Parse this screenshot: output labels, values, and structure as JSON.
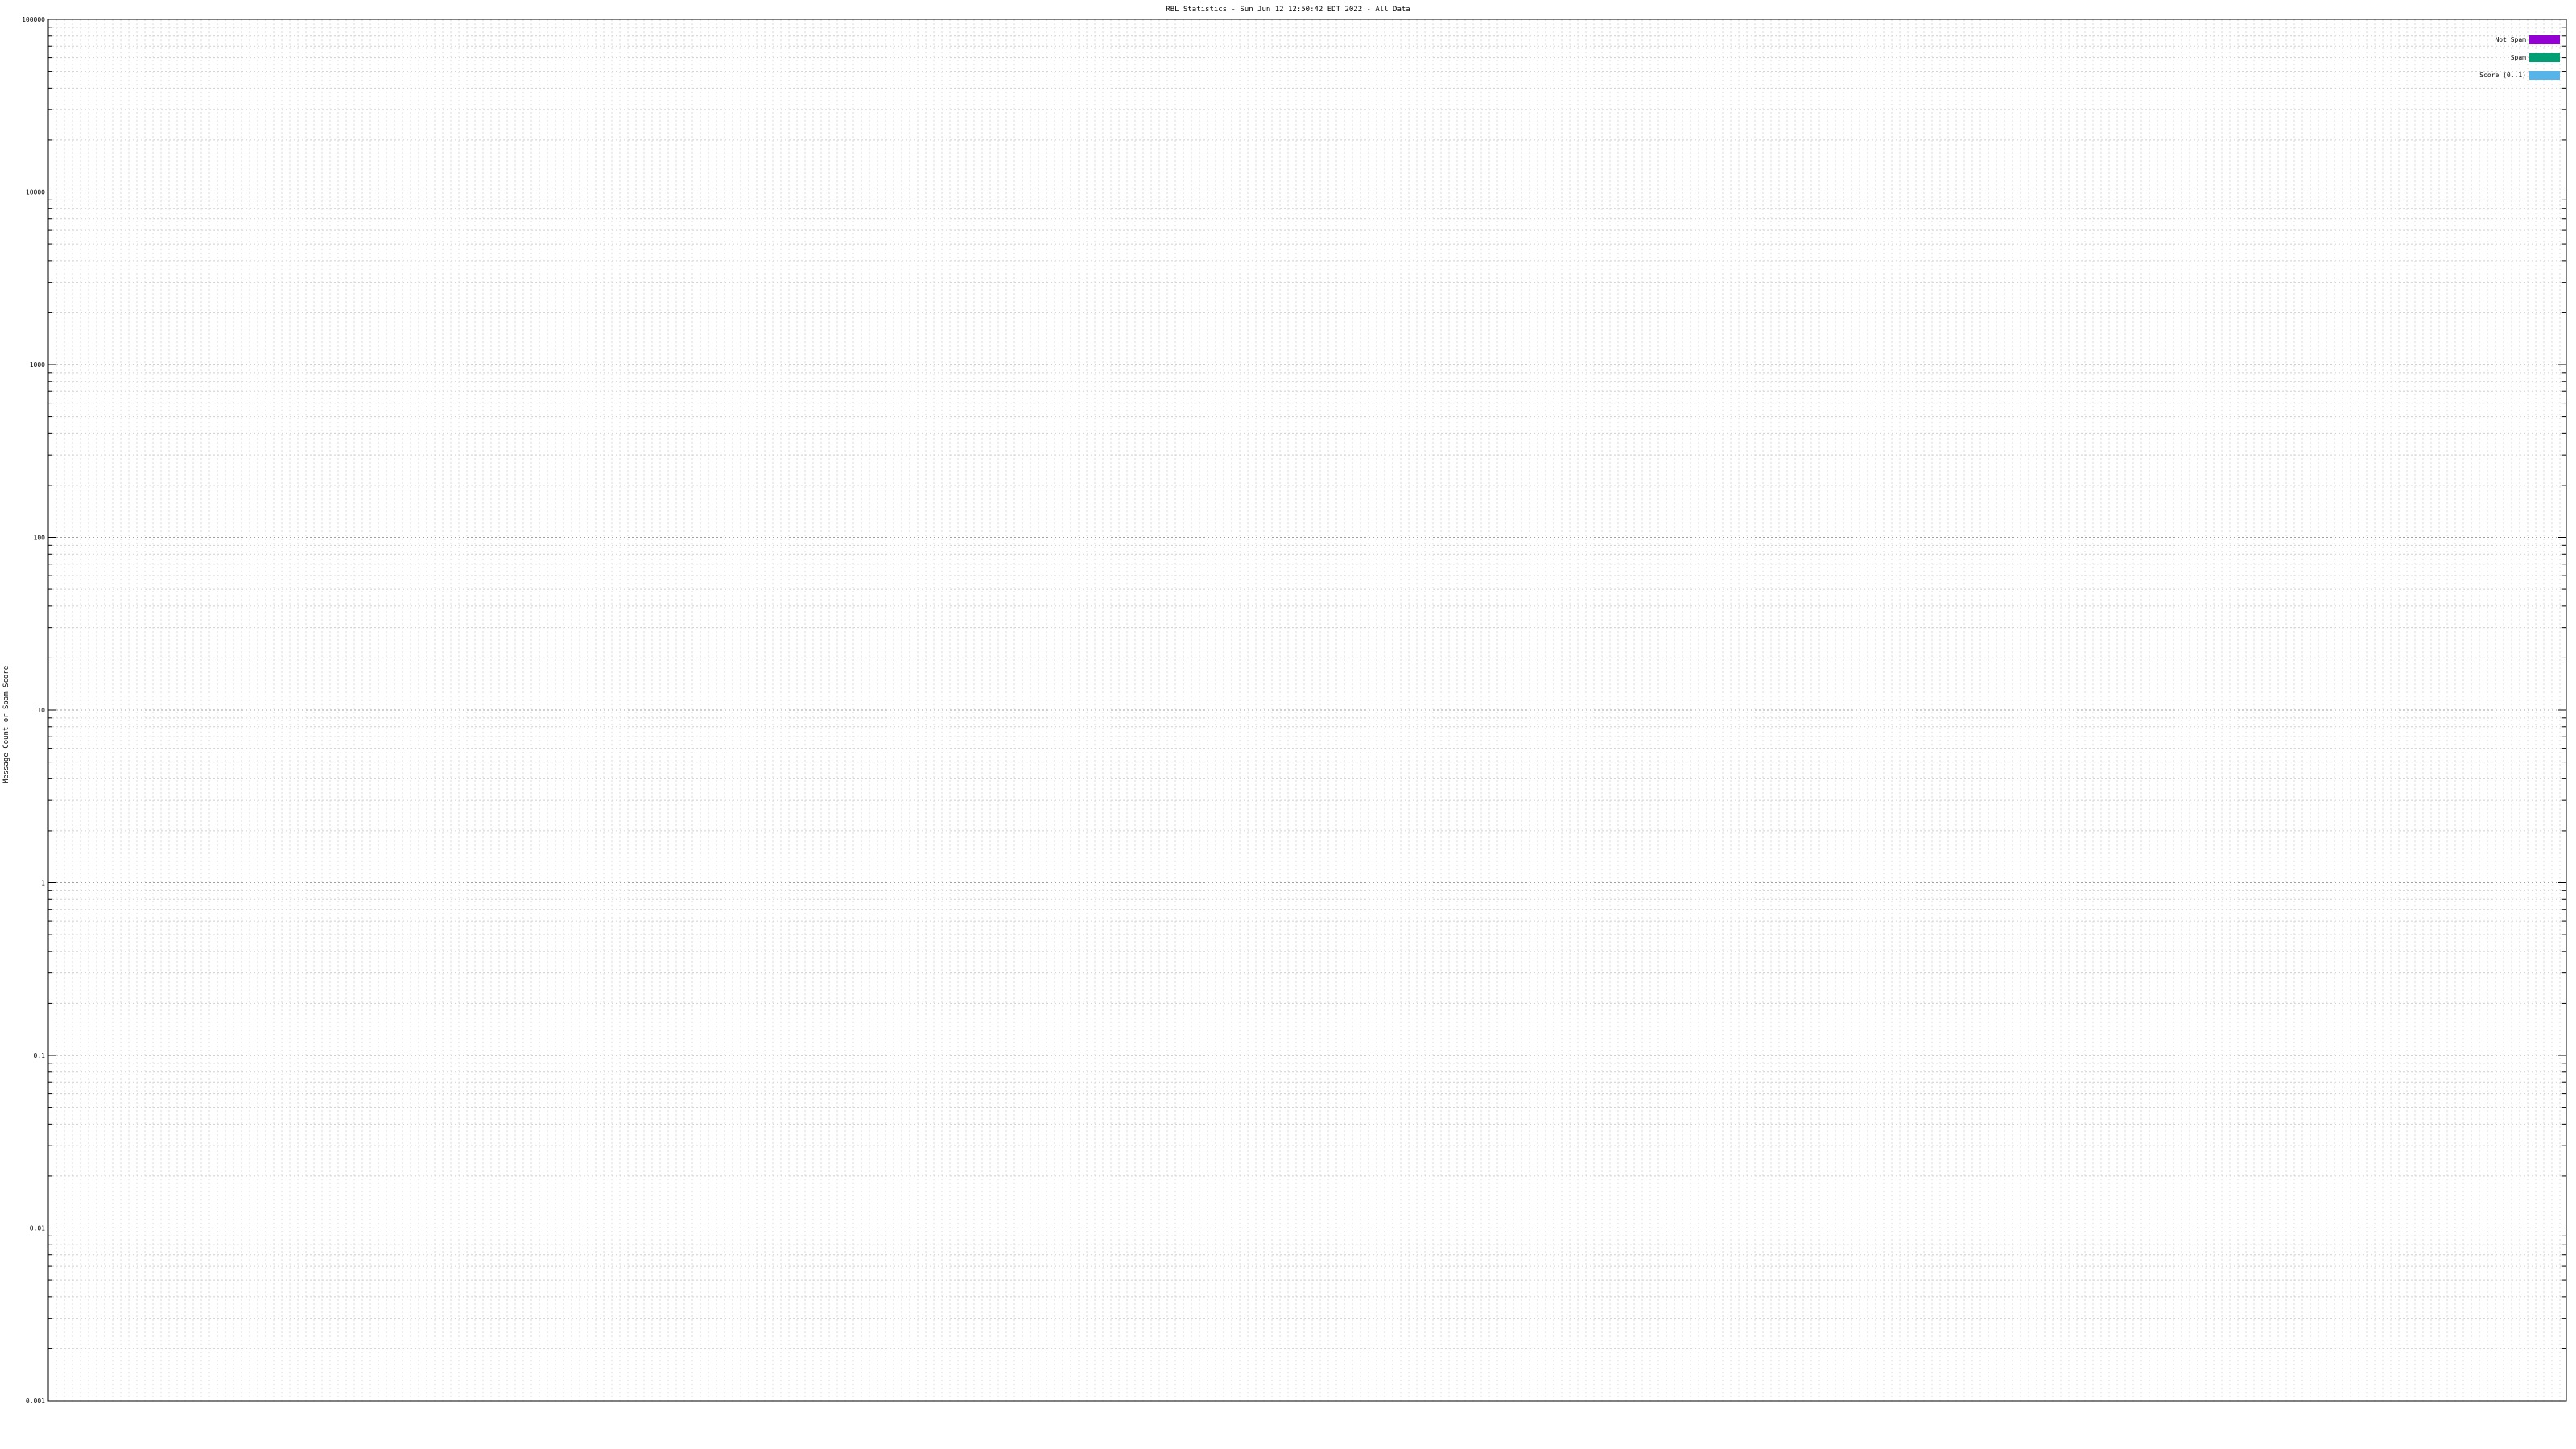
{
  "chart_data": {
    "type": "bar",
    "title": "RBL Statistics - Sun Jun 12 12:50:42 EDT 2022 - All Data",
    "ylabel": "Message Count or Spam Score",
    "y_scale": "log",
    "ylim": [
      0.001,
      100000
    ],
    "y_ticks": [
      {
        "value": 100000,
        "label": "100000"
      },
      {
        "value": 10000,
        "label": "10000"
      },
      {
        "value": 1000,
        "label": "1000"
      },
      {
        "value": 100,
        "label": "100"
      },
      {
        "value": 10,
        "label": "10"
      },
      {
        "value": 1,
        "label": "1"
      },
      {
        "value": 0.1,
        "label": "0.1"
      },
      {
        "value": 0.01,
        "label": "0.01"
      },
      {
        "value": 0.001,
        "label": "0.001"
      }
    ],
    "grid": true,
    "legend_position": "top-right",
    "series": [
      {
        "name": "Not Spam",
        "color": "#9400d3",
        "values": [
          0,
          0,
          0,
          0,
          0,
          0,
          0,
          0,
          0,
          0,
          0,
          0,
          0,
          0,
          0,
          0,
          0,
          0,
          0,
          0,
          0,
          0,
          0,
          0,
          0,
          0,
          0,
          0,
          0,
          0,
          0,
          0,
          0,
          0,
          0,
          0,
          0,
          0,
          0,
          0,
          0,
          0,
          0,
          0,
          0,
          0,
          0,
          0,
          0,
          0,
          0,
          0,
          0,
          0,
          0,
          0,
          0,
          0,
          0,
          0,
          0,
          0,
          0,
          0,
          0,
          0,
          0,
          0,
          0,
          0,
          0,
          0,
          0,
          0,
          0,
          0,
          0,
          0,
          0,
          0,
          0,
          0,
          0,
          0,
          0,
          0,
          0,
          0,
          0,
          0,
          0,
          0,
          0,
          0,
          0,
          0,
          0,
          0,
          0,
          0,
          0,
          0,
          0,
          0,
          0,
          0,
          0,
          0,
          0,
          0,
          0,
          0,
          0,
          0,
          0,
          0,
          0,
          0,
          0,
          0,
          0,
          0,
          0,
          0,
          0,
          0,
          0,
          0,
          0,
          0,
          0,
          0,
          0,
          0,
          0,
          0,
          0,
          0,
          0,
          0,
          0,
          0,
          0,
          0,
          0,
          0,
          0,
          0,
          0,
          0,
          0,
          0,
          0,
          0,
          0,
          0,
          0,
          0,
          0,
          0,
          0,
          0,
          0,
          0,
          0,
          0,
          0,
          0,
          0,
          0,
          0,
          0,
          0,
          0,
          0,
          0,
          0,
          0,
          0,
          0,
          0,
          0,
          0,
          0,
          0,
          0,
          0,
          0,
          0,
          0,
          0,
          0,
          0,
          0,
          0,
          0,
          0,
          0,
          0,
          0,
          0,
          0,
          0,
          0,
          0,
          0,
          0,
          0,
          0,
          0,
          0,
          0,
          0,
          0,
          0,
          0,
          0,
          0,
          0,
          0,
          0,
          0,
          0,
          0,
          0,
          0,
          0,
          0,
          0,
          0,
          0,
          0,
          0,
          0,
          0,
          0,
          0,
          0,
          0,
          0,
          0,
          0,
          0,
          0,
          0,
          0,
          0,
          0,
          0,
          0,
          0,
          0,
          0,
          0,
          0,
          0,
          0,
          0,
          0,
          0,
          0,
          0,
          0,
          0,
          0,
          0,
          0,
          0,
          0,
          0,
          0,
          0,
          0,
          0,
          0,
          0,
          0,
          0,
          0,
          0,
          0,
          0,
          0,
          0,
          0,
          0,
          0,
          0,
          0,
          0,
          0,
          0,
          0,
          0,
          0,
          0,
          0,
          0,
          0,
          0,
          0,
          0,
          0,
          0,
          0,
          0,
          0,
          0,
          0,
          0,
          0,
          0,
          0,
          0,
          0,
          0,
          0,
          0,
          0,
          0,
          0
        ]
      },
      {
        "name": "Spam",
        "color": "#009e73",
        "values": [
          0,
          0,
          0,
          0,
          0,
          0,
          0,
          0,
          0,
          0,
          0,
          0,
          0,
          0,
          0,
          0,
          0,
          0,
          0,
          0,
          0,
          0,
          0,
          0,
          0,
          0,
          0,
          0,
          0,
          0,
          0,
          0,
          0,
          0,
          0,
          0,
          0,
          0,
          0,
          0,
          0,
          0,
          0,
          0,
          0,
          0,
          0,
          0,
          0,
          0,
          0,
          0,
          0,
          0,
          0,
          0,
          0,
          0,
          0,
          0,
          0,
          0,
          0,
          0,
          0,
          0,
          0,
          0,
          0,
          0,
          0,
          0,
          0,
          0,
          0,
          0,
          0,
          0,
          0,
          0,
          0,
          0,
          0,
          0,
          0,
          0,
          0,
          0,
          0,
          0,
          0,
          0,
          0,
          0,
          0,
          0,
          0,
          0,
          0,
          0,
          0,
          0,
          0,
          0,
          0,
          0,
          0,
          0,
          0,
          0,
          0,
          0,
          0,
          0,
          0,
          0,
          0,
          0,
          0,
          0,
          0,
          0,
          0,
          0,
          0,
          0,
          0,
          0,
          0,
          0,
          0,
          0,
          0,
          0,
          0,
          0,
          0,
          0,
          0,
          0,
          0,
          0,
          0,
          0,
          0,
          0,
          0,
          0,
          0,
          0,
          0,
          0,
          0,
          0,
          0,
          0,
          0,
          0,
          0,
          0,
          0,
          0,
          0,
          0,
          0,
          0,
          0,
          0,
          0,
          0,
          0,
          0,
          0,
          0,
          0,
          0,
          0,
          0,
          0,
          0,
          0,
          0,
          0,
          0,
          0,
          0,
          0,
          0,
          0,
          0,
          0,
          0,
          0,
          0,
          0,
          0,
          0,
          0,
          0,
          0,
          0,
          0,
          0,
          0,
          0,
          0,
          0,
          0,
          0,
          0,
          0,
          0,
          0,
          0,
          0,
          0,
          0,
          0,
          0,
          0,
          0,
          0,
          0,
          0,
          0,
          0,
          0,
          0,
          0,
          0,
          0,
          0,
          0,
          0,
          0,
          0,
          0,
          0,
          0,
          0,
          0,
          0,
          0,
          0,
          0,
          0,
          0,
          0,
          0,
          0,
          0,
          0,
          0,
          0,
          0,
          0,
          0,
          0,
          0,
          0,
          0,
          0,
          0,
          0,
          0,
          0,
          0,
          0,
          0,
          0,
          0,
          0,
          0,
          0,
          0,
          0,
          0,
          0,
          0,
          0,
          0,
          0,
          0,
          0,
          0,
          0,
          0,
          0,
          0,
          0,
          0,
          0,
          0,
          0,
          0,
          0,
          0,
          0,
          0,
          0,
          0,
          0,
          0,
          0,
          0,
          0,
          0,
          0,
          0,
          0,
          0,
          0,
          0,
          0,
          0,
          0,
          0,
          0,
          0,
          0,
          0,
          0,
          0,
          0,
          0
        ]
      },
      {
        "name": "Score (0..1)",
        "color": "#56b4e9",
        "values": [
          0,
          0,
          0,
          0,
          0,
          0,
          0,
          0,
          0,
          0,
          0,
          0,
          0,
          0,
          0,
          0,
          0,
          0,
          0,
          0,
          0,
          0,
          0,
          0,
          0,
          0,
          0,
          0,
          0,
          0,
          0,
          0,
          0,
          0,
          0,
          0,
          0,
          0,
          0,
          0,
          0,
          0,
          0,
          0,
          0,
          0,
          0,
          0,
          0,
          0,
          0,
          0,
          0,
          0,
          0,
          0,
          0,
          0,
          0,
          0,
          0,
          0,
          0,
          0,
          0,
          0,
          0,
          0,
          0,
          0,
          0,
          0,
          0,
          0,
          0,
          0,
          0,
          0,
          0,
          0,
          0,
          0,
          0,
          0,
          0,
          0,
          0,
          0,
          0,
          0,
          0,
          0,
          0,
          0,
          0,
          0,
          0,
          0,
          0,
          0,
          0,
          0,
          0,
          0,
          0,
          0,
          0,
          0,
          0,
          0,
          0,
          0,
          0,
          0,
          0,
          0,
          0,
          0,
          0,
          0,
          0,
          0,
          0,
          0,
          0,
          0,
          0,
          0,
          0,
          0,
          0,
          0,
          0,
          0,
          0,
          0,
          0,
          0,
          0,
          0,
          0,
          0,
          0,
          0,
          0,
          0,
          0,
          0,
          0,
          0,
          0,
          0,
          0,
          0,
          0,
          0,
          0,
          0,
          0,
          0,
          0,
          0,
          0,
          0,
          0,
          0,
          0,
          0,
          0,
          0,
          0,
          0,
          0,
          0,
          0,
          0,
          0,
          0,
          0,
          0,
          0,
          0,
          0,
          0,
          0,
          0,
          0,
          0,
          0,
          0,
          0,
          0,
          0,
          0,
          0,
          0,
          0,
          0,
          0,
          0,
          0,
          0,
          0,
          0,
          0,
          0,
          0,
          0,
          0,
          0,
          0,
          0,
          0,
          0,
          0,
          0,
          0,
          0,
          0,
          0,
          0,
          0,
          0,
          0,
          0,
          0,
          0,
          0,
          0,
          0,
          0,
          0,
          0,
          0,
          0,
          0,
          0,
          0,
          0,
          0,
          0,
          0,
          0,
          0,
          0,
          0,
          0,
          0,
          0,
          0,
          0,
          0,
          0,
          0,
          0,
          0,
          0,
          0,
          0,
          0,
          0,
          0,
          0,
          0,
          0,
          0,
          0,
          0,
          0,
          0,
          0,
          0,
          0,
          0,
          0,
          0,
          0,
          0,
          0,
          0,
          0,
          0,
          0,
          0,
          0,
          0,
          0,
          0,
          0,
          0,
          0,
          0,
          0,
          0,
          0,
          0,
          0,
          0,
          0,
          0,
          0,
          0,
          0,
          0,
          0,
          0,
          0,
          0,
          0,
          0,
          0,
          0,
          0,
          0,
          0,
          0,
          0,
          0,
          0,
          0,
          0
        ]
      }
    ]
  }
}
